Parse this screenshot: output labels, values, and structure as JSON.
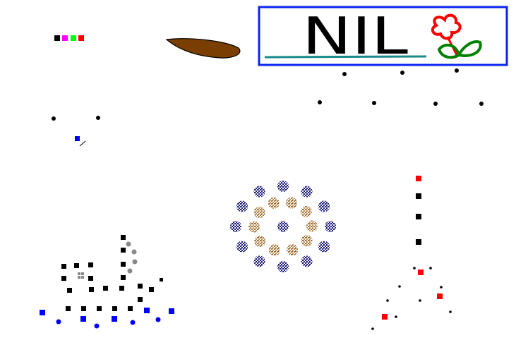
{
  "title_box": {
    "text": "NIL",
    "border_color": "#0a24f0",
    "underline_color": "#1a8a8a",
    "flower_icon": "flower-icon"
  },
  "palette": {
    "black": "#000000",
    "magenta": "#ff00ff",
    "green": "#00ff00",
    "red": "#ff0000",
    "blue": "#0000ff",
    "brown": "#7a3e00",
    "navy": "#1a1a7a",
    "tan": "#b08040",
    "gray": "#888888",
    "flower_red": "#ff0000",
    "flower_green": "#008000"
  },
  "icons": [
    "color-swatches",
    "leaf-icon",
    "flower-icon",
    "pointer-icon"
  ]
}
